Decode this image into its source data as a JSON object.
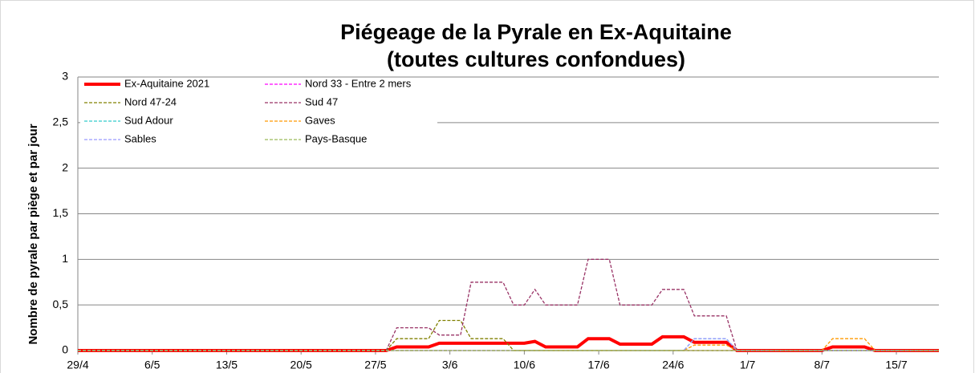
{
  "chart_data": {
    "type": "line",
    "title": "Piégeage de la Pyrale en Ex-Aquitaine",
    "subtitle": "(toutes cultures confondues)",
    "y_label": "Nombre de pyrale par piège et par jour",
    "categories": [
      "29/4",
      null,
      null,
      null,
      null,
      null,
      null,
      "6/5",
      null,
      null,
      null,
      null,
      null,
      null,
      "13/5",
      null,
      null,
      null,
      null,
      null,
      null,
      "20/5",
      null,
      null,
      null,
      null,
      null,
      null,
      "27/5",
      null,
      null,
      null,
      null,
      null,
      null,
      "3/6",
      null,
      null,
      null,
      null,
      null,
      null,
      "10/6",
      null,
      null,
      null,
      null,
      null,
      null,
      "17/6",
      null,
      null,
      null,
      null,
      null,
      null,
      "24/6",
      null,
      null,
      null,
      null,
      null,
      null,
      "1/7",
      null,
      null,
      null,
      null,
      null,
      null,
      "8/7",
      null,
      null,
      null,
      null,
      null,
      null,
      "15/7",
      null,
      null,
      null,
      null
    ],
    "ylim": [
      0,
      3
    ],
    "yticks": [
      0,
      {
        "value": 0.5,
        "label": "0,5"
      },
      1,
      {
        "value": 1.5,
        "label": "1,5"
      },
      2,
      {
        "value": 2.5,
        "label": "2,5"
      },
      3
    ],
    "grid": true,
    "legend": "upper left",
    "series": [
      {
        "name": "Ex-Aquitaine 2021",
        "color": "#ff0000",
        "line_style": "solid",
        "values": [
          0,
          0,
          0,
          0,
          0,
          0,
          0,
          0,
          0,
          0,
          0,
          0,
          0,
          0,
          0,
          0,
          0,
          0,
          0,
          0,
          0,
          0,
          0,
          0,
          0,
          0,
          0,
          0,
          0,
          0,
          0.04,
          0.04,
          0.04,
          0.04,
          0.08,
          0.08,
          0.08,
          0.08,
          0.08,
          0.08,
          0.08,
          0.08,
          0.08,
          0.1,
          0.04,
          0.04,
          0.04,
          0.04,
          0.13,
          0.13,
          0.13,
          0.07,
          0.07,
          0.07,
          0.07,
          0.15,
          0.15,
          0.15,
          0.09,
          0.09,
          0.09,
          0.09,
          0,
          0,
          0,
          0,
          0,
          0,
          0,
          0,
          0,
          0.04,
          0.04,
          0.04,
          0.04,
          0,
          0,
          0,
          0,
          0,
          0,
          0
        ]
      },
      {
        "name": "Nord 33 - Entre 2 mers",
        "color": "#ff00ff",
        "line_style": "dashed",
        "values": [
          0,
          0,
          0,
          0,
          0,
          0,
          0,
          0,
          0,
          0,
          0,
          0,
          0,
          0,
          0,
          0,
          0,
          0,
          0,
          0,
          0,
          0,
          0,
          0,
          0,
          0,
          0,
          0,
          0,
          0,
          0,
          0,
          0,
          0,
          0,
          0,
          0,
          0,
          0,
          0,
          0,
          0,
          0,
          0,
          0,
          0,
          0,
          0,
          0,
          0,
          0,
          0,
          0,
          0,
          0,
          0,
          0,
          0,
          0,
          0,
          0,
          0,
          0,
          0,
          0,
          0,
          0,
          0,
          0,
          0,
          0,
          0,
          0,
          0,
          0,
          0,
          0,
          0,
          0,
          0,
          0,
          0
        ]
      },
      {
        "name": "Nord 47-24",
        "color": "#808000",
        "line_style": "dashed",
        "values": [
          0,
          0,
          0,
          0,
          0,
          0,
          0,
          0,
          0,
          0,
          0,
          0,
          0,
          0,
          0,
          0,
          0,
          0,
          0,
          0,
          0,
          0,
          0,
          0,
          0,
          0,
          0,
          0,
          0,
          0,
          0.13,
          0.13,
          0.13,
          0.13,
          0.33,
          0.33,
          0.33,
          0.13,
          0.13,
          0.13,
          0.13,
          0,
          0,
          0,
          0,
          0,
          0,
          0,
          0,
          0,
          0,
          0,
          0,
          0,
          0,
          0,
          0,
          0,
          0,
          0,
          0,
          0,
          0,
          0,
          0,
          0,
          0,
          0,
          0,
          0,
          0,
          0,
          0,
          0,
          0,
          0,
          0,
          0,
          0,
          0,
          0,
          0
        ]
      },
      {
        "name": "Sud 47",
        "color": "#993366",
        "line_style": "dashed",
        "values": [
          0,
          0,
          0,
          0,
          0,
          0,
          0,
          0,
          0,
          0,
          0,
          0,
          0,
          0,
          0,
          0,
          0,
          0,
          0,
          0,
          0,
          0,
          0,
          0,
          0,
          0,
          0,
          0,
          0,
          0,
          0.25,
          0.25,
          0.25,
          0.25,
          0.17,
          0.17,
          0.17,
          0.75,
          0.75,
          0.75,
          0.75,
          0.5,
          0.5,
          0.67,
          0.5,
          0.5,
          0.5,
          0.5,
          1,
          1,
          1,
          0.5,
          0.5,
          0.5,
          0.5,
          0.67,
          0.67,
          0.67,
          0.38,
          0.38,
          0.38,
          0.38,
          0,
          0,
          0,
          0,
          0,
          0,
          0,
          0,
          0,
          0,
          0,
          0,
          0,
          0,
          0,
          0,
          0,
          0,
          0,
          0
        ]
      },
      {
        "name": "Sud Adour",
        "color": "#33cccc",
        "line_style": "dashed",
        "values": [
          0,
          0,
          0,
          0,
          0,
          0,
          0,
          0,
          0,
          0,
          0,
          0,
          0,
          0,
          0,
          0,
          0,
          0,
          0,
          0,
          0,
          0,
          0,
          0,
          0,
          0,
          0,
          0,
          0,
          0,
          0,
          0,
          0,
          0,
          0,
          0,
          0,
          0,
          0,
          0,
          0,
          0,
          0,
          0,
          0,
          0,
          0,
          0,
          0,
          0,
          0,
          0,
          0,
          0,
          0,
          0,
          0,
          0,
          0.13,
          0.13,
          0.13,
          0.13,
          0,
          0,
          0,
          0,
          0,
          0,
          0,
          0,
          0,
          0,
          0,
          0,
          0,
          0,
          0,
          0,
          0,
          0,
          0,
          0
        ]
      },
      {
        "name": "Gaves",
        "color": "#ff9900",
        "line_style": "dashed",
        "values": [
          0,
          0,
          0,
          0,
          0,
          0,
          0,
          0,
          0,
          0,
          0,
          0,
          0,
          0,
          0,
          0,
          0,
          0,
          0,
          0,
          0,
          0,
          0,
          0,
          0,
          0,
          0,
          0,
          0,
          0,
          0,
          0,
          0,
          0,
          0,
          0,
          0,
          0,
          0,
          0,
          0,
          0,
          0,
          0,
          0,
          0,
          0,
          0,
          0,
          0,
          0,
          0,
          0,
          0,
          0,
          0,
          0,
          0,
          0.06,
          0.06,
          0.06,
          0.06,
          0,
          0,
          0,
          0,
          0,
          0,
          0,
          0,
          0,
          0.13,
          0.13,
          0.13,
          0.13,
          0,
          0,
          0,
          0,
          0,
          0,
          0
        ]
      },
      {
        "name": "Sables",
        "color": "#9999ff",
        "line_style": "dashed",
        "values": [
          0,
          0,
          0,
          0,
          0,
          0,
          0,
          0,
          0,
          0,
          0,
          0,
          0,
          0,
          0,
          0,
          0,
          0,
          0,
          0,
          0,
          0,
          0,
          0,
          0,
          0,
          0,
          0,
          0,
          0,
          0,
          0,
          0,
          0,
          0,
          0,
          0,
          0,
          0,
          0,
          0,
          0,
          0,
          0,
          0,
          0,
          0,
          0,
          0,
          0,
          0,
          0,
          0,
          0,
          0,
          0,
          0,
          0,
          0.13,
          0.13,
          0.13,
          0.13,
          0,
          0,
          0,
          0,
          0,
          0,
          0,
          0,
          0,
          0,
          0,
          0,
          0,
          0,
          0,
          0,
          0,
          0,
          0,
          0
        ]
      },
      {
        "name": "Pays-Basque",
        "color": "#9bbb59",
        "line_style": "dashed",
        "values": [
          0,
          0,
          0,
          0,
          0,
          0,
          0,
          0,
          0,
          0,
          0,
          0,
          0,
          0,
          0,
          0,
          0,
          0,
          0,
          0,
          0,
          0,
          0,
          0,
          0,
          0,
          0,
          0,
          0,
          0,
          0,
          0,
          0,
          0,
          0,
          0,
          0,
          0,
          0,
          0,
          0,
          0,
          0,
          0,
          0,
          0,
          0,
          0,
          0,
          0,
          0,
          0,
          0,
          0,
          0,
          0,
          0,
          0,
          0,
          0,
          0,
          0,
          0,
          0,
          0,
          0,
          0,
          0,
          0,
          0,
          0,
          0,
          0,
          0,
          0,
          0,
          0,
          0,
          0,
          0,
          0,
          0
        ]
      }
    ]
  }
}
